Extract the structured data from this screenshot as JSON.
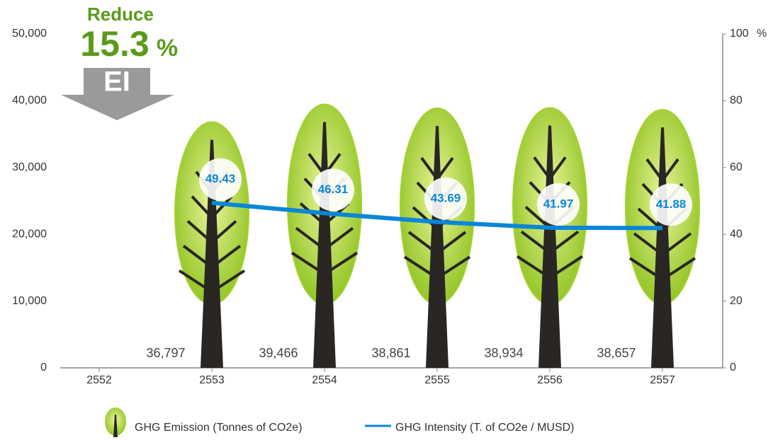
{
  "chart_data": {
    "type": "bar",
    "categories": [
      "2552",
      "2553",
      "2554",
      "2555",
      "2556",
      "2557"
    ],
    "series": [
      {
        "name": "GHG Emission (Tonnes of CO2e)",
        "color": "#a4d12c",
        "values": [
          null,
          36797,
          39466,
          38861,
          38934,
          38657
        ],
        "value_labels": [
          null,
          "36,797",
          "39,466",
          "38,861",
          "38,934",
          "38,657"
        ]
      },
      {
        "name": "GHG Intensity (T. of CO2e / MUSD)",
        "type": "line",
        "axis": "y2",
        "color": "#0a86d8",
        "values": [
          null,
          49.43,
          46.31,
          43.69,
          41.97,
          41.88
        ]
      }
    ],
    "ylim": [
      0,
      50000
    ],
    "yticks": [
      0,
      {
        "value": 10000,
        "label": "10,000"
      },
      {
        "value": 20000,
        "label": "20,000"
      },
      {
        "value": 30000,
        "label": "30,000"
      },
      {
        "value": 40000,
        "label": "40,000"
      },
      {
        "value": 50000,
        "label": "50,000"
      }
    ],
    "y2lim": [
      0,
      100
    ],
    "y2ticks": [
      0,
      20,
      40,
      60,
      80,
      100
    ],
    "y2label": "%",
    "annotation": {
      "title": "Reduce",
      "value": 15.3,
      "unit": "%",
      "label": "EI"
    }
  }
}
